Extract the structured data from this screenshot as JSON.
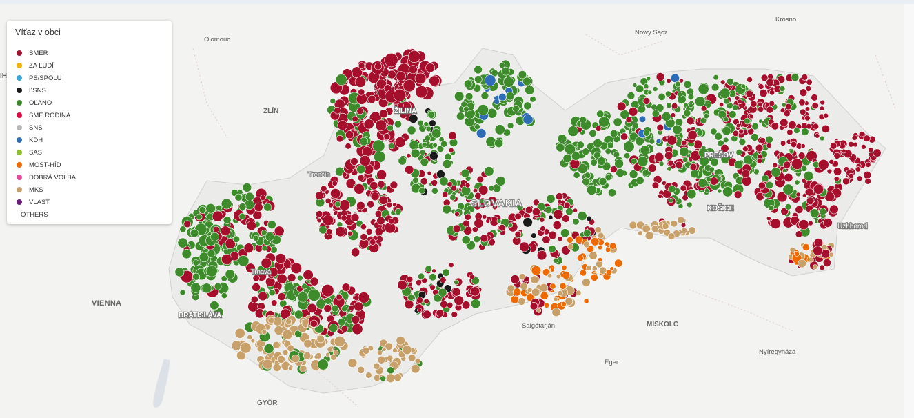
{
  "legend": {
    "title": "Víťaz v obci",
    "items": [
      {
        "label": "SMER",
        "color": "#a50f2c"
      },
      {
        "label": "ZA ĽUDÍ",
        "color": "#f0b400"
      },
      {
        "label": "PS/SPOLU",
        "color": "#35a5de"
      },
      {
        "label": "ĽSNS",
        "color": "#1a1a1a"
      },
      {
        "label": "OĽANO",
        "color": "#3d8b2a"
      },
      {
        "label": "SME RODINA",
        "color": "#d90c45"
      },
      {
        "label": "SNS",
        "color": "#b8b8b8"
      },
      {
        "label": "KDH",
        "color": "#2e6db5"
      },
      {
        "label": "SAS",
        "color": "#8fbf2a"
      },
      {
        "label": "MOST-HÍD",
        "color": "#ee6a00"
      },
      {
        "label": "DOBRÁ VOLBA",
        "color": "#e24c9a"
      },
      {
        "label": "MKS",
        "color": "#c8a06a"
      },
      {
        "label": "VLASŤ",
        "color": "#6a1a7a"
      }
    ],
    "others_label": "OTHERS"
  },
  "map_labels": {
    "olomouc": "Olomouc",
    "nowy_sacz": "Nowy Sącz",
    "krosno": "Krosno",
    "zlin": "ZLÍN",
    "zilina": "ŽILINA",
    "trencin": "Trenčín",
    "presov": "PREŠOV",
    "slovakia": "SLOVAKIA",
    "kosice": "KOŠICE",
    "uzhhorod": "Uzhhorod",
    "trnava": "Trnava",
    "vienna": "VIENNA",
    "bratislava": "BRATISLAVA",
    "salgotarjan": "Salgótarján",
    "miskolc": "MISKOLC",
    "nyiregyhaza": "Nyíregyháza",
    "eger": "Eger",
    "gyor": "GYŐR",
    "edge_label": "IH"
  }
}
